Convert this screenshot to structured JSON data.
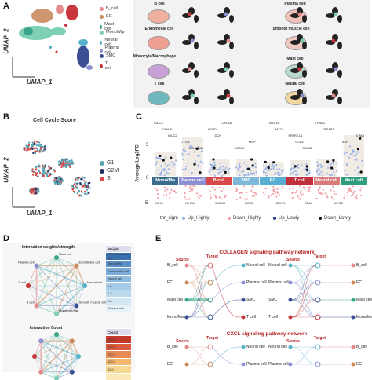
{
  "panels": {
    "a": "A",
    "b": "B",
    "c": "C",
    "d": "D",
    "e": "E"
  },
  "panelA": {
    "ylabel": "UMAP_2",
    "xlabel": "UMAP_1",
    "legend": [
      {
        "label": "B_cell",
        "color": "#e38a8a"
      },
      {
        "label": "EC",
        "color": "#c98b5e"
      },
      {
        "label": "Mast cell",
        "color": "#3aa58a"
      },
      {
        "label": "Mono/Mφ",
        "color": "#7fcfb4"
      },
      {
        "label": "Neural cell",
        "color": "#56b3c9"
      },
      {
        "label": "Plasma cell",
        "color": "#8c8fd1"
      },
      {
        "label": "SMC",
        "color": "#3b4f94"
      },
      {
        "label": "T cell",
        "color": "#c6363b"
      }
    ],
    "cells": [
      {
        "label": "B cell"
      },
      {
        "label": "Plasma cell"
      },
      {
        "label": "Endothelial cell"
      },
      {
        "label": "Smooth muscle cell"
      },
      {
        "label": "Monocyte/Macrophage"
      },
      {
        "label": "Mast cell"
      },
      {
        "label": "T cell"
      },
      {
        "label": "Neural cell"
      }
    ]
  },
  "panelB": {
    "title": "Cell Cycle Score",
    "ylabel": "UMAP_2",
    "xlabel": "UMAP_1",
    "legend": [
      {
        "label": "G1",
        "color": "#5aa6b4"
      },
      {
        "label": "G2M",
        "color": "#1e2e5c"
      },
      {
        "label": "S",
        "color": "#d94b4b"
      }
    ]
  },
  "panelC": {
    "ylabel": "Average Log2FC",
    "yticks": [
      "5",
      "0",
      "-5"
    ],
    "celltypes": [
      {
        "label": "Mono/Mφ",
        "color": "#3a6e8c"
      },
      {
        "label": "Plasma cell",
        "color": "#8c8fd1"
      },
      {
        "label": "B cell",
        "color": "#d94848"
      },
      {
        "label": "SMC",
        "color": "#7fb9d9"
      },
      {
        "label": "EC",
        "color": "#5aaed4"
      },
      {
        "label": "T cell",
        "color": "#c0303a"
      },
      {
        "label": "Neural cell",
        "color": "#d87a7a"
      },
      {
        "label": "Mast cell",
        "color": "#2f9c7e"
      }
    ],
    "legend_title": "thr_signi",
    "legend": [
      {
        "label": "Up_Highly",
        "color": "#9ab6e6"
      },
      {
        "label": "Down_Highly",
        "color": "#f0a0a8"
      },
      {
        "label": "Up_Lowly",
        "color": "#2a3b8f"
      },
      {
        "label": "Down_Lowly",
        "color": "#111111"
      }
    ],
    "genes_top": [
      "IGLC3",
      "JCHAIN",
      "IGLC2",
      "CYGB",
      "HLA-DQB1",
      "CXCL8",
      "APOD",
      "DCN",
      "MGP",
      "ACTA2",
      "TAGLN",
      "MT2A",
      "SPARCL1",
      "CCL5",
      "S100B",
      "TPSB2",
      "TPSAB1",
      "CPA3",
      "IL7R"
    ],
    "genes_bottom": [
      "IGKC",
      "IGHA1",
      "CLDN5",
      "RGS5",
      "NRXN1",
      "CD69",
      "APOE"
    ]
  },
  "panelD": {
    "title1": "Interaction weights/strength",
    "title2": "Interaction Count",
    "nodes": [
      "Mast cell",
      "Endothelial cell",
      "Neural cell",
      "Smooth muscle cell",
      "Monocyte/Mφ",
      "B cell",
      "T cell",
      "Plasma cell"
    ],
    "scale1_header": "Weight",
    "scale1": [
      {
        "label": "Smooth muscle cell",
        "color": "#3a6fb0"
      },
      {
        "label": "Mono/Mac",
        "color": "#5a8fc8"
      },
      {
        "label": "Endothelial cell",
        "color": "#7aaad8"
      },
      {
        "label": "Neural cell",
        "color": "#8fbbe0"
      },
      {
        "label": "1.6",
        "color": "#a6cbe8"
      },
      {
        "label": "1.2",
        "color": "#bcd9ee"
      },
      {
        "label": "0.8",
        "color": "#d3e6f4"
      },
      {
        "label": "Plasma cell",
        "color": "#e8f2f9"
      }
    ],
    "scale2_header": "Count",
    "scale2": [
      {
        "label": "400.0",
        "color": "#c0392b"
      },
      {
        "label": "300.0",
        "color": "#d95a3c"
      },
      {
        "label": "200.0",
        "color": "#e88a55"
      },
      {
        "label": "100.0",
        "color": "#f2b66e"
      },
      {
        "label": "50.0",
        "color": "#f7d890"
      },
      {
        "label": "",
        "color": "#fbe9b8"
      }
    ]
  },
  "panelE": {
    "title1": "COLLAGEN signaling pathway network",
    "title2": "CXCL signaling pathway network",
    "source": "Source",
    "target": "Target",
    "left_sources": [
      {
        "label": "B_cell",
        "color": "#e38a8a"
      },
      {
        "label": "EC",
        "color": "#c98b5e"
      },
      {
        "label": "Mast cell",
        "color": "#3aa58a"
      },
      {
        "label": "Mono/Mac",
        "color": "#3b4f94"
      }
    ],
    "left_targets": [
      {
        "label": "Neural cell",
        "color": "#56b3c9"
      },
      {
        "label": "Plasma cell",
        "color": "#8c8fd1"
      },
      {
        "label": "SMC",
        "color": "#3b4f94"
      },
      {
        "label": "T cell",
        "color": "#c6363b"
      }
    ],
    "right_sources": [
      {
        "label": "Neural cell",
        "color": "#56b3c9"
      },
      {
        "label": "Plasma cell",
        "color": "#8c8fd1"
      },
      {
        "label": "SMC",
        "color": "#3b4f94"
      },
      {
        "label": "T cell",
        "color": "#c6363b"
      }
    ],
    "right_targets": [
      {
        "label": "B_cell",
        "color": "#e38a8a"
      },
      {
        "label": "EC",
        "color": "#c98b5e"
      },
      {
        "label": "Mast cell",
        "color": "#3aa58a"
      },
      {
        "label": "Mono/Mac",
        "color": "#3b4f94"
      }
    ],
    "cxcl_sources": [
      {
        "label": "B_cell",
        "color": "#e38a8a"
      },
      {
        "label": "EC",
        "color": "#c98b5e"
      }
    ],
    "cxcl_targets": [
      {
        "label": "Neural cell",
        "color": "#56b3c9"
      },
      {
        "label": "Plasma cell",
        "color": "#8c8fd1"
      }
    ],
    "cxcl_right_targets": [
      {
        "label": "B_cell",
        "color": "#e38a8a"
      },
      {
        "label": "EC",
        "color": "#c98b5e"
      }
    ]
  }
}
